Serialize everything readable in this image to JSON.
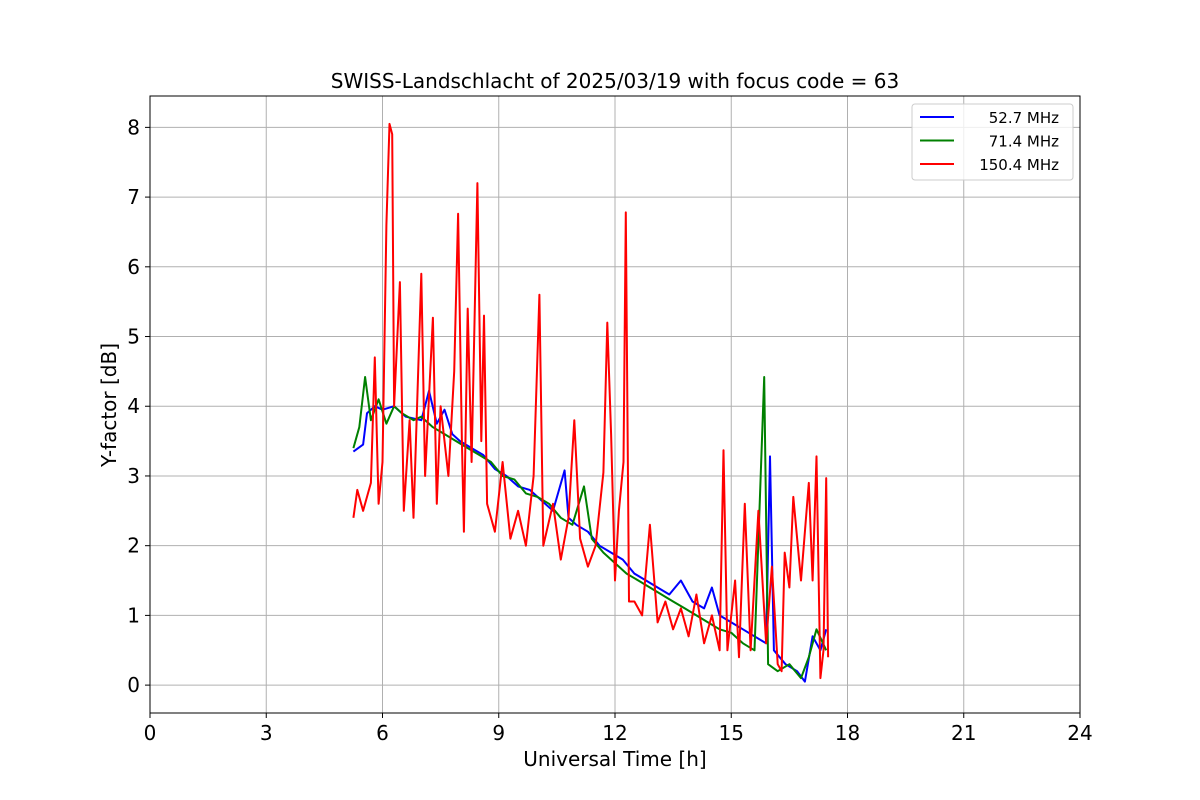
{
  "chart_data": {
    "type": "line",
    "title": "SWISS-Landschlacht of 2025/03/19 with focus code = 63",
    "xlabel": "Universal Time [h]",
    "ylabel": "Y-factor [dB]",
    "xlim": [
      0,
      24
    ],
    "ylim": [
      -0.4,
      8.45
    ],
    "xticks": [
      0,
      3,
      6,
      9,
      12,
      15,
      18,
      21,
      24
    ],
    "yticks": [
      0,
      1,
      2,
      3,
      4,
      5,
      6,
      7,
      8
    ],
    "grid": true,
    "legend_position": "top-right",
    "series": [
      {
        "name": "52.7 MHz",
        "color": "#0000ff",
        "points": [
          [
            5.25,
            3.35
          ],
          [
            5.5,
            3.45
          ],
          [
            5.6,
            3.9
          ],
          [
            5.8,
            4.0
          ],
          [
            6.0,
            3.95
          ],
          [
            6.3,
            4.0
          ],
          [
            6.6,
            3.85
          ],
          [
            7.0,
            3.8
          ],
          [
            7.2,
            4.22
          ],
          [
            7.4,
            3.75
          ],
          [
            7.6,
            3.95
          ],
          [
            7.8,
            3.6
          ],
          [
            8.0,
            3.5
          ],
          [
            8.3,
            3.4
          ],
          [
            8.6,
            3.3
          ],
          [
            8.9,
            3.1
          ],
          [
            9.2,
            3.0
          ],
          [
            9.5,
            2.85
          ],
          [
            9.8,
            2.8
          ],
          [
            10.1,
            2.65
          ],
          [
            10.4,
            2.5
          ],
          [
            10.7,
            3.08
          ],
          [
            10.8,
            2.4
          ],
          [
            11.0,
            2.3
          ],
          [
            11.3,
            2.2
          ],
          [
            11.6,
            2.0
          ],
          [
            11.9,
            1.9
          ],
          [
            12.2,
            1.8
          ],
          [
            12.5,
            1.6
          ],
          [
            12.8,
            1.5
          ],
          [
            13.1,
            1.4
          ],
          [
            13.4,
            1.3
          ],
          [
            13.7,
            1.5
          ],
          [
            14.0,
            1.2
          ],
          [
            14.3,
            1.1
          ],
          [
            14.5,
            1.4
          ],
          [
            14.7,
            1.0
          ],
          [
            15.0,
            0.9
          ],
          [
            15.3,
            0.8
          ],
          [
            15.6,
            0.7
          ],
          [
            15.9,
            0.6
          ],
          [
            16.0,
            3.28
          ],
          [
            16.1,
            0.5
          ],
          [
            16.4,
            0.3
          ],
          [
            16.7,
            0.2
          ],
          [
            16.9,
            0.05
          ],
          [
            17.1,
            0.7
          ],
          [
            17.3,
            0.5
          ],
          [
            17.45,
            0.8
          ]
        ]
      },
      {
        "name": "71.4 MHz",
        "color": "#008000",
        "points": [
          [
            5.25,
            3.4
          ],
          [
            5.4,
            3.7
          ],
          [
            5.55,
            4.42
          ],
          [
            5.7,
            3.8
          ],
          [
            5.9,
            4.1
          ],
          [
            6.1,
            3.75
          ],
          [
            6.3,
            4.0
          ],
          [
            6.5,
            3.9
          ],
          [
            6.8,
            3.8
          ],
          [
            7.0,
            3.85
          ],
          [
            7.3,
            3.7
          ],
          [
            7.6,
            3.6
          ],
          [
            7.9,
            3.5
          ],
          [
            8.2,
            3.4
          ],
          [
            8.5,
            3.3
          ],
          [
            8.8,
            3.2
          ],
          [
            9.1,
            3.0
          ],
          [
            9.4,
            2.95
          ],
          [
            9.7,
            2.75
          ],
          [
            10.0,
            2.7
          ],
          [
            10.3,
            2.6
          ],
          [
            10.6,
            2.4
          ],
          [
            10.9,
            2.3
          ],
          [
            11.2,
            2.85
          ],
          [
            11.4,
            2.1
          ],
          [
            11.7,
            1.9
          ],
          [
            12.0,
            1.75
          ],
          [
            12.3,
            1.6
          ],
          [
            12.6,
            1.5
          ],
          [
            12.9,
            1.4
          ],
          [
            13.2,
            1.3
          ],
          [
            13.5,
            1.2
          ],
          [
            13.8,
            1.1
          ],
          [
            14.1,
            1.0
          ],
          [
            14.4,
            0.9
          ],
          [
            14.7,
            0.8
          ],
          [
            15.0,
            0.75
          ],
          [
            15.3,
            0.6
          ],
          [
            15.6,
            0.5
          ],
          [
            15.85,
            4.42
          ],
          [
            15.95,
            0.3
          ],
          [
            16.2,
            0.2
          ],
          [
            16.5,
            0.3
          ],
          [
            16.8,
            0.1
          ],
          [
            17.0,
            0.4
          ],
          [
            17.2,
            0.8
          ],
          [
            17.45,
            0.5
          ]
        ]
      },
      {
        "name": "150.4 MHz",
        "color": "#ff0000",
        "points": [
          [
            5.25,
            2.4
          ],
          [
            5.35,
            2.8
          ],
          [
            5.5,
            2.5
          ],
          [
            5.7,
            2.9
          ],
          [
            5.8,
            4.7
          ],
          [
            5.9,
            2.6
          ],
          [
            6.0,
            3.2
          ],
          [
            6.1,
            6.6
          ],
          [
            6.18,
            8.05
          ],
          [
            6.25,
            7.9
          ],
          [
            6.3,
            4.0
          ],
          [
            6.45,
            5.78
          ],
          [
            6.55,
            2.5
          ],
          [
            6.7,
            3.8
          ],
          [
            6.8,
            2.4
          ],
          [
            7.0,
            5.9
          ],
          [
            7.1,
            3.0
          ],
          [
            7.3,
            5.27
          ],
          [
            7.4,
            2.6
          ],
          [
            7.5,
            4.0
          ],
          [
            7.7,
            3.0
          ],
          [
            7.85,
            4.5
          ],
          [
            7.95,
            6.76
          ],
          [
            8.05,
            3.5
          ],
          [
            8.1,
            2.2
          ],
          [
            8.2,
            5.4
          ],
          [
            8.3,
            3.2
          ],
          [
            8.45,
            7.2
          ],
          [
            8.55,
            3.5
          ],
          [
            8.62,
            5.3
          ],
          [
            8.7,
            2.6
          ],
          [
            8.9,
            2.2
          ],
          [
            9.1,
            3.2
          ],
          [
            9.3,
            2.1
          ],
          [
            9.5,
            2.5
          ],
          [
            9.7,
            2.0
          ],
          [
            9.9,
            3.0
          ],
          [
            10.05,
            5.6
          ],
          [
            10.15,
            2.0
          ],
          [
            10.4,
            2.6
          ],
          [
            10.6,
            1.8
          ],
          [
            10.8,
            2.4
          ],
          [
            10.95,
            3.8
          ],
          [
            11.1,
            2.1
          ],
          [
            11.3,
            1.7
          ],
          [
            11.5,
            2.0
          ],
          [
            11.7,
            3.05
          ],
          [
            11.8,
            5.2
          ],
          [
            11.9,
            3.6
          ],
          [
            12.0,
            1.5
          ],
          [
            12.1,
            2.5
          ],
          [
            12.22,
            3.2
          ],
          [
            12.28,
            6.78
          ],
          [
            12.36,
            1.2
          ],
          [
            12.5,
            1.2
          ],
          [
            12.7,
            1.0
          ],
          [
            12.9,
            2.3
          ],
          [
            13.1,
            0.9
          ],
          [
            13.3,
            1.2
          ],
          [
            13.5,
            0.8
          ],
          [
            13.7,
            1.1
          ],
          [
            13.9,
            0.7
          ],
          [
            14.1,
            1.3
          ],
          [
            14.3,
            0.6
          ],
          [
            14.5,
            1.0
          ],
          [
            14.7,
            0.5
          ],
          [
            14.8,
            3.37
          ],
          [
            14.9,
            0.5
          ],
          [
            15.1,
            1.5
          ],
          [
            15.2,
            0.4
          ],
          [
            15.35,
            2.6
          ],
          [
            15.5,
            0.5
          ],
          [
            15.7,
            2.5
          ],
          [
            15.9,
            0.6
          ],
          [
            16.05,
            1.7
          ],
          [
            16.2,
            0.3
          ],
          [
            16.3,
            0.2
          ],
          [
            16.38,
            1.9
          ],
          [
            16.5,
            1.4
          ],
          [
            16.6,
            2.7
          ],
          [
            16.8,
            1.5
          ],
          [
            17.0,
            2.9
          ],
          [
            17.1,
            1.5
          ],
          [
            17.2,
            3.28
          ],
          [
            17.3,
            0.1
          ],
          [
            17.38,
            0.5
          ],
          [
            17.45,
            2.97
          ],
          [
            17.5,
            0.4
          ]
        ]
      }
    ]
  }
}
